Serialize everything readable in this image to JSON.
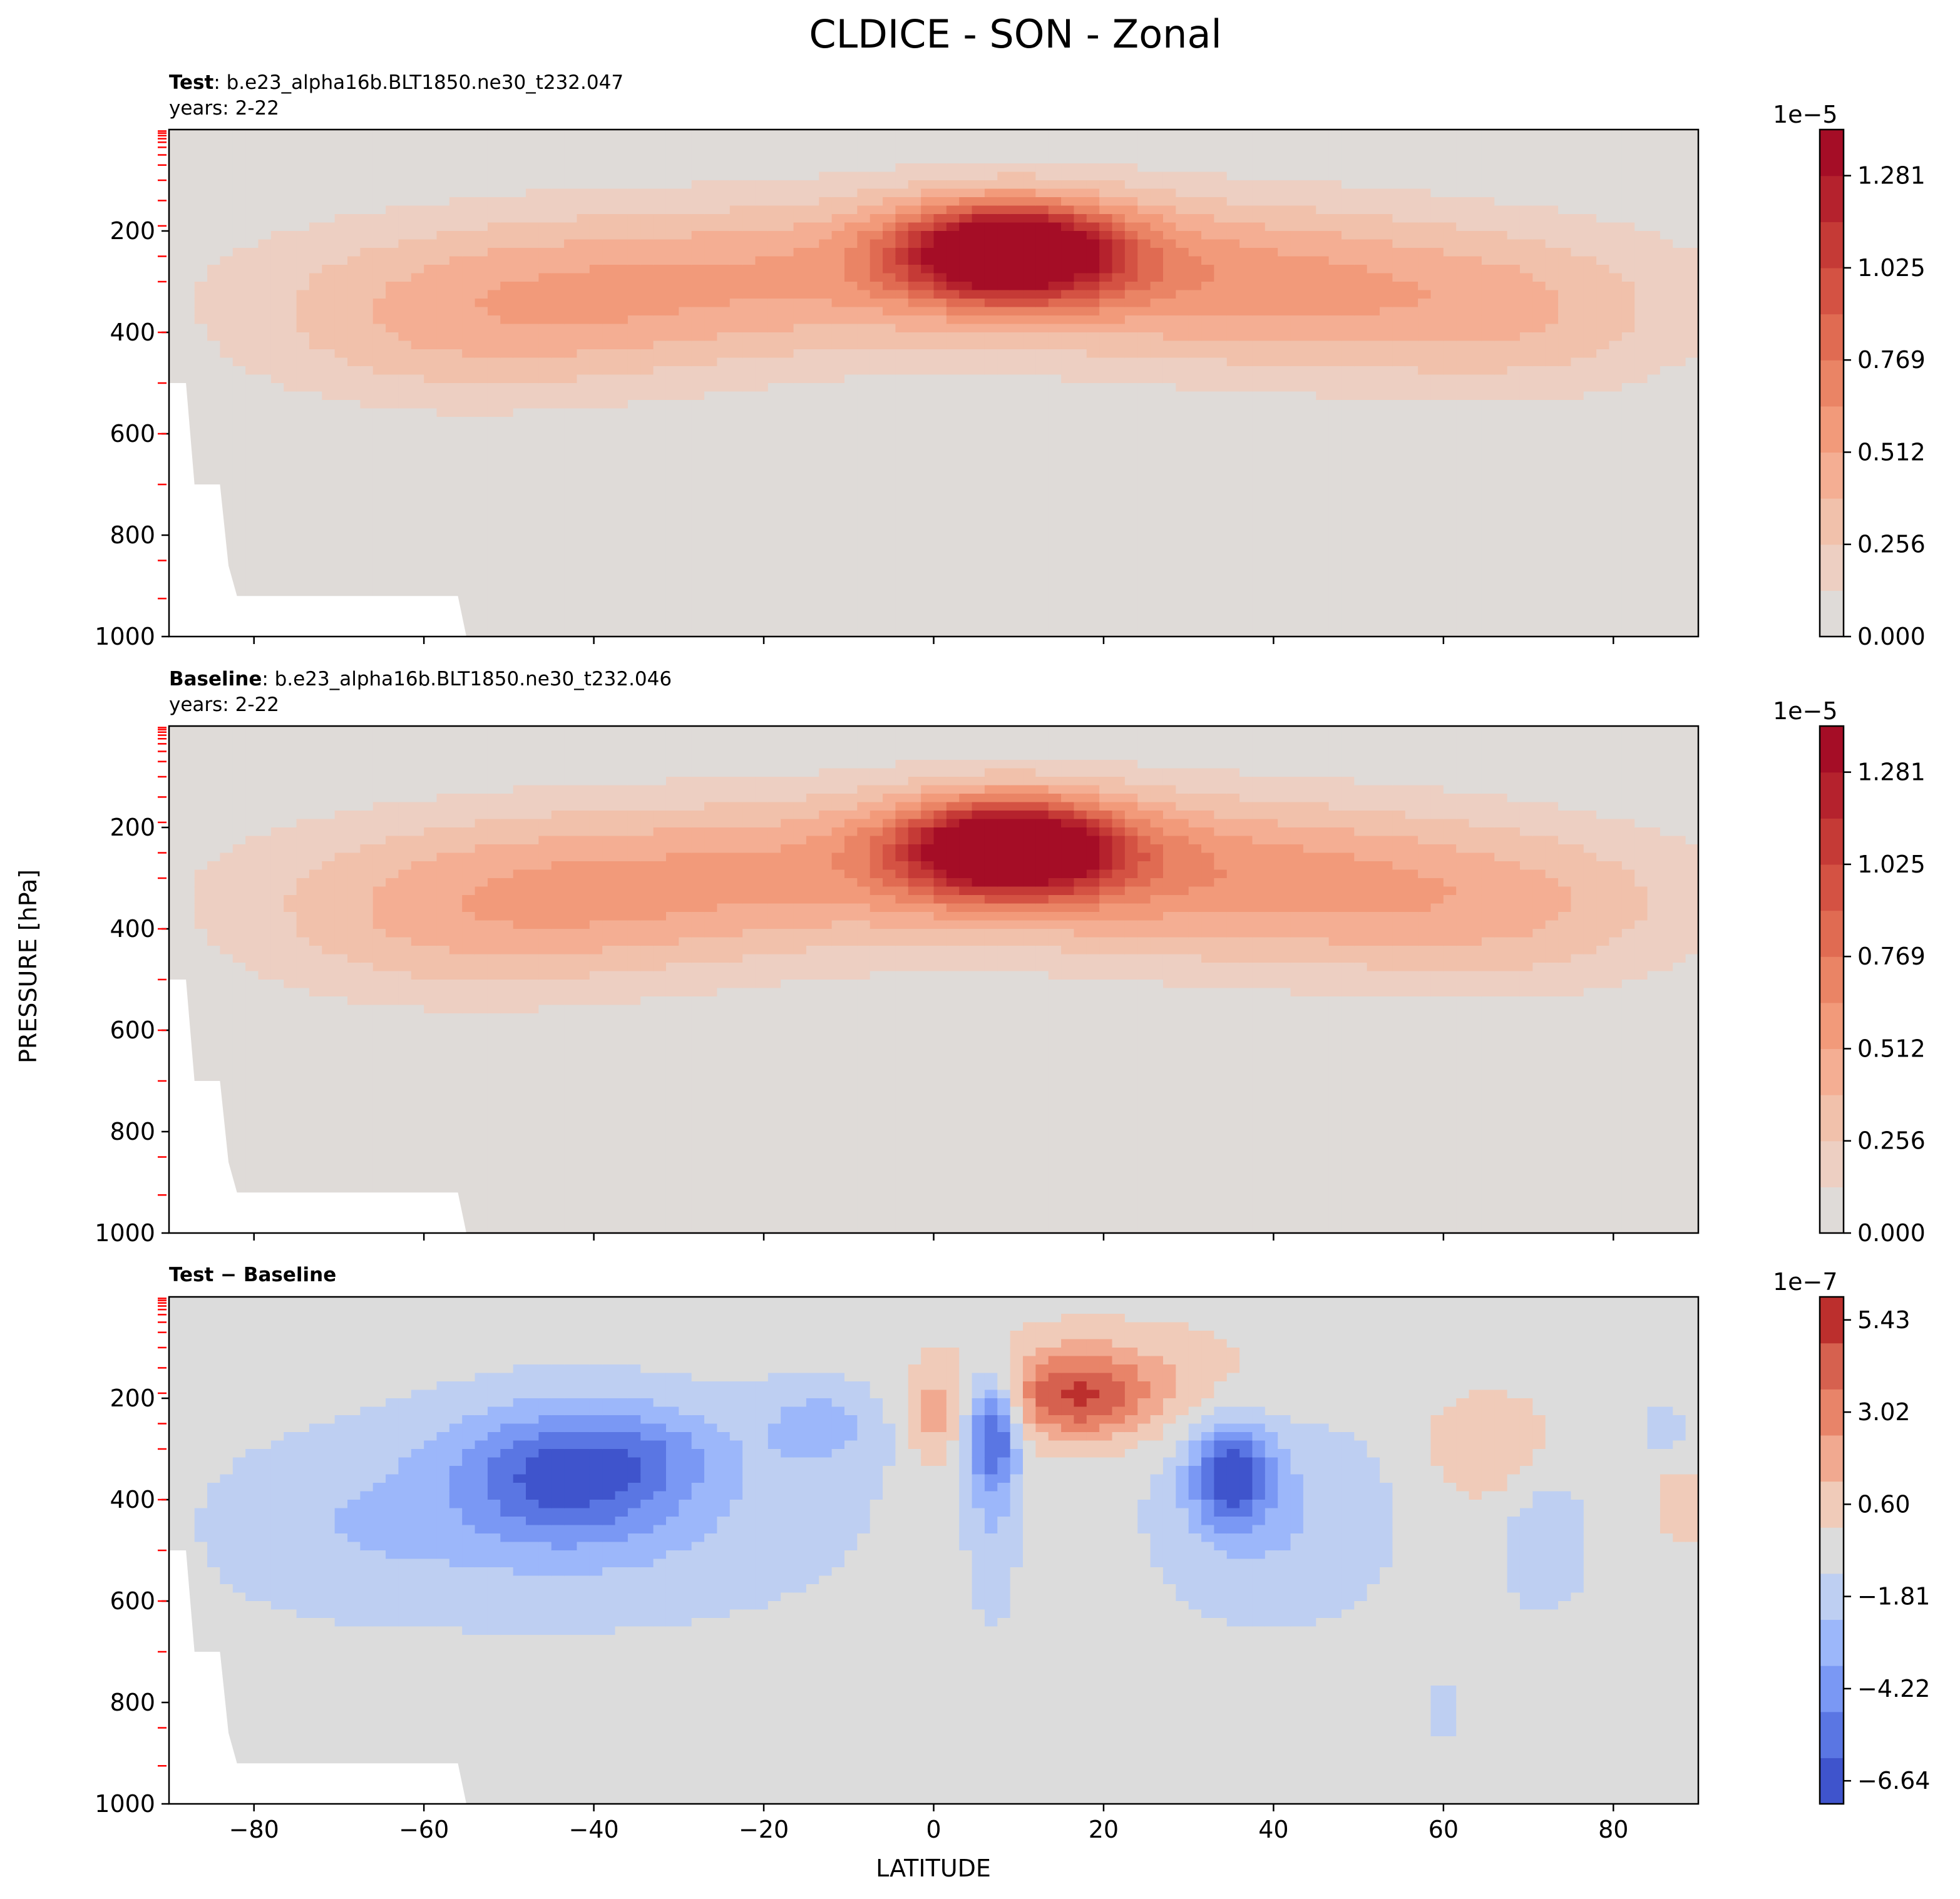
{
  "chart_data": {
    "type": "contour",
    "suptitle": "CLDICE - SON - Zonal",
    "xlabel": "LATITUDE",
    "ylabel": "PRESSURE [hPa]",
    "xlim": [
      -90,
      90
    ],
    "ylim": [
      1000,
      0
    ],
    "x_ticks": [
      "−80",
      "−60",
      "−40",
      "−20",
      "0",
      "20",
      "40",
      "60",
      "80"
    ],
    "y_ticks": [
      "200",
      "400",
      "600",
      "800",
      "1000"
    ],
    "panels": [
      {
        "id": "test",
        "label_bold": "Test",
        "label_rest": ": b.e23_alpha16b.BLT1850.ne30_t232.047",
        "years": "years: 2-22",
        "colorbar": {
          "scale": "1e−5",
          "ticks": [
            "0.000",
            "0.256",
            "0.512",
            "0.769",
            "1.025",
            "1.281"
          ],
          "levels": 11,
          "min": 0.0,
          "max": 1.41
        },
        "features": [
          {
            "lat": 9,
            "p": 240,
            "max": 1.38
          },
          {
            "lat": -38,
            "p": 300,
            "max": 0.4
          },
          {
            "lat": 46,
            "p": 300,
            "max": 0.4
          }
        ]
      },
      {
        "id": "baseline",
        "label_bold": "Baseline",
        "label_rest": ": b.e23_alpha16b.BLT1850.ne30_t232.046",
        "years": "years: 2-22",
        "colorbar": {
          "scale": "1e−5",
          "ticks": [
            "0.000",
            "0.256",
            "0.512",
            "0.769",
            "1.025",
            "1.281"
          ],
          "levels": 11,
          "min": 0.0,
          "max": 1.41
        },
        "features": [
          {
            "lat": 9,
            "p": 240,
            "max": 1.38
          },
          {
            "lat": -38,
            "p": 300,
            "max": 0.42
          },
          {
            "lat": 46,
            "p": 300,
            "max": 0.42
          }
        ]
      },
      {
        "id": "diff",
        "label": "Test − Baseline",
        "colorbar": {
          "scale": "1e−7",
          "ticks": [
            "−6.64",
            "−4.22",
            "−1.81",
            "0.60",
            "3.02",
            "5.43"
          ],
          "levels": 11,
          "min": -6.64,
          "max": 6.64
        },
        "features": [
          {
            "lat": -43,
            "p": 350,
            "value": -4.6
          },
          {
            "lat": 7,
            "p": 260,
            "value": -5.6
          },
          {
            "lat": 35,
            "p": 350,
            "value": -5.5
          },
          {
            "lat": 17,
            "p": 200,
            "value": 4.4
          },
          {
            "lat": 0,
            "p": 240,
            "value": 2.2
          },
          {
            "lat": -13,
            "p": 250,
            "value": -2.0
          },
          {
            "lat": 66,
            "p": 300,
            "value": 1.8
          },
          {
            "lat": 88,
            "p": 410,
            "value": 1.8
          },
          {
            "lat": 60,
            "p": 820,
            "value": -1.5
          }
        ]
      }
    ]
  }
}
